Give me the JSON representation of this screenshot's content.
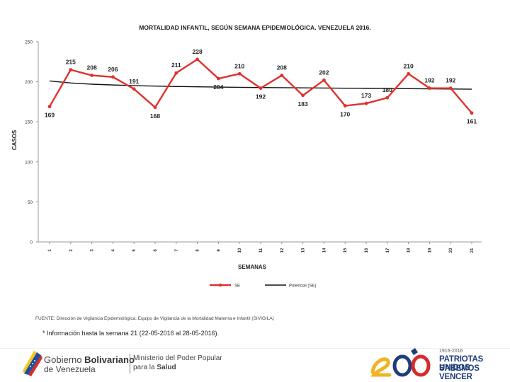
{
  "chart_data": {
    "type": "line",
    "title": "MORTALIDAD INFANTIL, SEGÚN SEMANA EPIDEMIOLÓGICA. VENEZUELA 2016.",
    "xlabel": "SEMANAS",
    "ylabel": "CASOS",
    "categories": [
      "1",
      "2",
      "3",
      "4",
      "5",
      "6",
      "7",
      "8",
      "9",
      "10",
      "11",
      "12",
      "13",
      "14",
      "15",
      "16",
      "17",
      "18",
      "19",
      "20",
      "21"
    ],
    "ylim": [
      0,
      250
    ],
    "yticks": [
      "0",
      "50",
      "100",
      "150",
      "200",
      "250"
    ],
    "grid": false,
    "legend_position": "bottom",
    "series": [
      {
        "name": "SE",
        "color": "#e0312c",
        "values": [
          169,
          215,
          208,
          206,
          191,
          168,
          211,
          228,
          204,
          210,
          192,
          208,
          183,
          202,
          170,
          173,
          180,
          210,
          192,
          192,
          161
        ],
        "labels": [
          "169",
          "215",
          "208",
          "206",
          "191",
          "168",
          "211",
          "228",
          "204",
          "210",
          "192",
          "208",
          "183",
          "202",
          "170",
          "173",
          "180",
          "210",
          "192",
          "192",
          "161"
        ]
      },
      {
        "name": "Potencial (SE)",
        "color": "#111111",
        "values": [
          201,
          198.5,
          197,
          196,
          195.2,
          194.6,
          194.1,
          193.7,
          193.4,
          193.1,
          192.8,
          192.6,
          192.4,
          192.2,
          192,
          191.8,
          191.6,
          191.4,
          191.2,
          191,
          190.8
        ]
      }
    ]
  },
  "source": "FUENTE: Dirección de Vigilancia Epidemiológica. Equipo de Vigilancia de la Mortalidad Materna e Infantil (SIVIGILA)",
  "note": "* Información hasta la semana 21 (22-05-2016 al 28-05-2016).",
  "footer": {
    "gov_line1_a": "Gobierno ",
    "gov_line1_b": "Bolivariano",
    "gov_line2": "de Venezuela",
    "ministry_line1": "Ministerio del Poder Popular",
    "ministry_line2_a": "para la ",
    "ministry_line2_b": "Salud",
    "bicentennial_years": "1916-2016",
    "bicentennial_line1": "PATRIOTAS UNIDOS",
    "bicentennial_line2": "SABEMOS VENCER"
  },
  "colors": {
    "flag_yellow": "#f6c521",
    "flag_blue": "#1d4f9c",
    "flag_red": "#d62b2b"
  }
}
